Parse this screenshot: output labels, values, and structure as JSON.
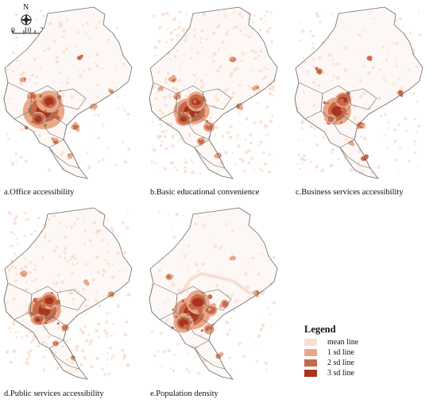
{
  "compass": {
    "north_label": "N"
  },
  "scale_bar": {
    "labels": [
      "0",
      "10",
      "20km"
    ]
  },
  "panels": [
    {
      "caption": "a.Office accessibility"
    },
    {
      "caption": "b.Basic educational convenience"
    },
    {
      "caption": "c.Business services accessibility"
    },
    {
      "caption": "d.Public services accessibility"
    },
    {
      "caption": "e.Population density"
    }
  ],
  "legend": {
    "title": "Legend",
    "items": [
      {
        "label": "mean line",
        "color": "#f8dfd2"
      },
      {
        "label": "1 sd line",
        "color": "#e8a888"
      },
      {
        "label": "2 sd line",
        "color": "#c76a4c"
      },
      {
        "label": "3 sd line",
        "color": "#a8341c"
      }
    ]
  },
  "colors": {
    "outline": "#6b6b6b",
    "land": "#fdf8f5",
    "scatter": "#f3d3c2"
  }
}
